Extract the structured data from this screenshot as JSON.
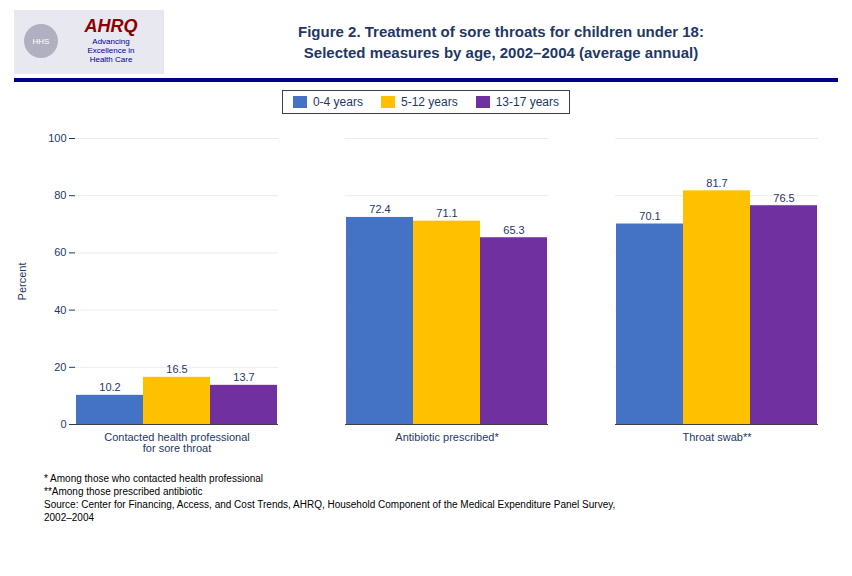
{
  "chart_data": {
    "type": "bar",
    "title": "Figure 2.  Treatment of sore throats for children under 18:",
    "subtitle": "Selected measures by age, 2002–2004 (average annual)",
    "categories": [
      "Contacted health professional\nfor sore throat",
      "Antibiotic prescribed*",
      "Throat swab**"
    ],
    "series": [
      {
        "name": "0-4 years",
        "color": "#4472C4",
        "values": [
          10.2,
          72.4,
          70.1
        ]
      },
      {
        "name": "5-12 years",
        "color": "#FFC000",
        "values": [
          16.5,
          71.1,
          81.7
        ]
      },
      {
        "name": "13-17 years",
        "color": "#7030A0",
        "values": [
          13.7,
          65.3,
          76.5
        ]
      }
    ],
    "ylabel": "Percent",
    "ylim": [
      0,
      100
    ],
    "yticks": [
      0,
      20,
      40,
      60,
      80,
      100
    ],
    "grid": true,
    "legend": "top",
    "data_labels": true,
    "annotations": [
      "HHS",
      "AHRQ",
      "Advancing\nExcellence in\nHealth Care",
      "* Among those who contacted health professional",
      "**Among those prescribed antibiotic",
      "Source: Center for Financing, Access, and Cost Trends, AHRQ, Household Component of the Medical Expenditure Panel Survey,",
      "2002–2004"
    ]
  }
}
